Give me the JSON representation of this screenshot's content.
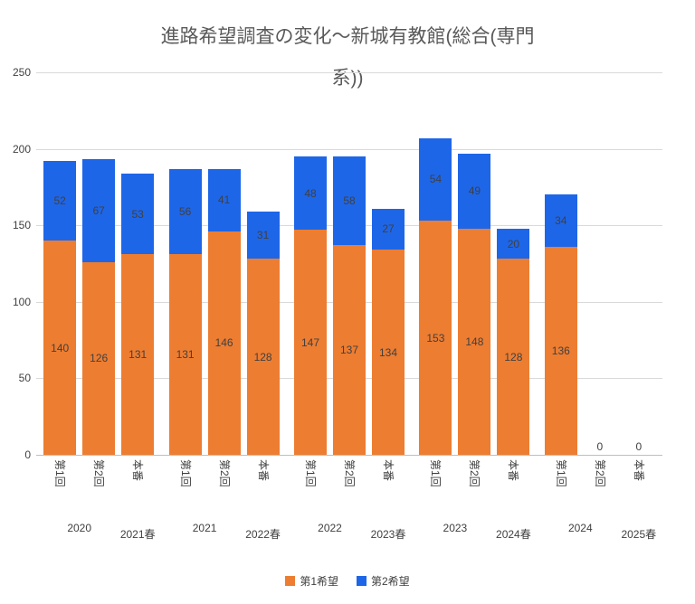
{
  "title_lines": [
    "進路希望調査の変化～新城有教館(総合(専門",
    "系))"
  ],
  "colors": {
    "series1": "#ED7D31",
    "series2": "#1E66E8",
    "title_text": "#595959",
    "label_text": "#404040"
  },
  "chart_data": {
    "type": "bar",
    "stacked": true,
    "title": "進路希望調査の変化～新城有教館(総合(専門系))",
    "ylim": [
      0,
      250
    ],
    "yticks": [
      0,
      50,
      100,
      150,
      200,
      250
    ],
    "grid": true,
    "legend_position": "bottom",
    "series": [
      {
        "name": "第1希望",
        "color": "#ED7D31"
      },
      {
        "name": "第2希望",
        "color": "#1E66E8"
      }
    ],
    "groups": [
      {
        "survey_year": "2020",
        "exam_term": "2021春",
        "sub_categories": [
          "第1回",
          "第2回",
          "本番"
        ],
        "series1_values": [
          140,
          126,
          131
        ],
        "series2_values": [
          52,
          67,
          53
        ]
      },
      {
        "survey_year": "2021",
        "exam_term": "2022春",
        "sub_categories": [
          "第1回",
          "第2回",
          "本番"
        ],
        "series1_values": [
          131,
          146,
          128
        ],
        "series2_values": [
          56,
          41,
          31
        ]
      },
      {
        "survey_year": "2022",
        "exam_term": "2023春",
        "sub_categories": [
          "第1回",
          "第2回",
          "本番"
        ],
        "series1_values": [
          147,
          137,
          134
        ],
        "series2_values": [
          48,
          58,
          27
        ]
      },
      {
        "survey_year": "2023",
        "exam_term": "2024春",
        "sub_categories": [
          "第1回",
          "第2回",
          "本番"
        ],
        "series1_values": [
          153,
          148,
          128
        ],
        "series2_values": [
          54,
          49,
          20
        ]
      },
      {
        "survey_year": "2024",
        "exam_term": "2025春",
        "sub_categories": [
          "第1回",
          "第2回",
          "本番"
        ],
        "series1_values": [
          136,
          0,
          0
        ],
        "series2_values": [
          34,
          0,
          0
        ]
      }
    ]
  }
}
